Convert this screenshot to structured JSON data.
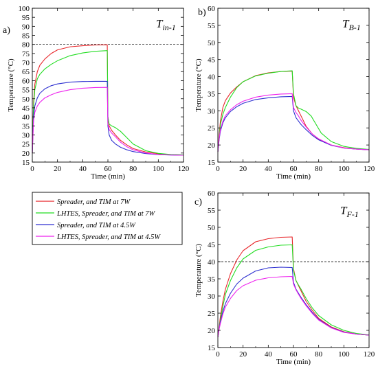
{
  "chart_data": [
    {
      "type": "line",
      "panel_letter": "a)",
      "title_main": "T",
      "title_sub": "in-1",
      "xlabel": "Time (min)",
      "ylabel": "Temperature (°C)",
      "xlim": [
        0,
        120
      ],
      "ylim": [
        15,
        100
      ],
      "xticks": [
        0,
        20,
        40,
        60,
        80,
        100,
        120
      ],
      "yticks": [
        15,
        20,
        25,
        30,
        35,
        40,
        45,
        50,
        55,
        60,
        65,
        70,
        75,
        80,
        85,
        90,
        95,
        100
      ],
      "reference_line": 80,
      "grid": false,
      "series": [
        {
          "name": "Spreader, and TIM at 7W",
          "color": "#e8262a",
          "x": [
            0,
            1,
            2,
            4,
            6,
            10,
            15,
            20,
            30,
            40,
            50,
            59.5,
            60,
            61,
            63,
            66,
            70,
            75,
            80,
            90,
            100,
            110,
            120
          ],
          "y": [
            20,
            48,
            58,
            65,
            68.5,
            72,
            75,
            77,
            78.7,
            79.3,
            79.7,
            79.8,
            40,
            35,
            32.5,
            30,
            27,
            24.5,
            22.5,
            20.6,
            19.6,
            19.1,
            18.9
          ]
        },
        {
          "name": "LHTES, Spreader, and TIM at 7W",
          "color": "#22dd22",
          "x": [
            0,
            1,
            2,
            4,
            6,
            10,
            15,
            20,
            30,
            40,
            50,
            59.5,
            60,
            61,
            63,
            66,
            70,
            75,
            80,
            90,
            100,
            110,
            120
          ],
          "y": [
            20,
            46,
            55,
            61,
            63.5,
            66.5,
            69,
            71,
            73.8,
            75.3,
            76.2,
            76.6,
            40,
            36,
            35,
            34,
            32,
            28.5,
            25,
            21.3,
            19.8,
            19.2,
            19.0
          ]
        },
        {
          "name": "Spreader, and TIM at 4.5W",
          "color": "#2d2fd0",
          "x": [
            0,
            1,
            2,
            4,
            6,
            10,
            15,
            20,
            30,
            40,
            50,
            59.5,
            60,
            61,
            63,
            66,
            70,
            75,
            80,
            90,
            100,
            110,
            120
          ],
          "y": [
            20,
            40,
            46,
            50.5,
            53,
            55.5,
            57.2,
            58.2,
            59.2,
            59.5,
            59.6,
            59.6,
            35,
            30,
            27,
            25,
            23.2,
            21.8,
            20.8,
            19.7,
            19.1,
            18.9,
            18.8
          ]
        },
        {
          "name": "LHTES, Spreader, and TIM at 4.5W",
          "color": "#ee22ee",
          "x": [
            0,
            1,
            2,
            4,
            6,
            10,
            15,
            20,
            30,
            40,
            50,
            59.5,
            60,
            61,
            63,
            66,
            70,
            75,
            80,
            90,
            100,
            110,
            120
          ],
          "y": [
            20,
            38,
            42.5,
            46,
            48,
            50.5,
            52.2,
            53.5,
            55,
            55.8,
            56.2,
            56.3,
            36,
            33,
            31,
            29,
            26,
            23.5,
            21.8,
            20.0,
            19.2,
            18.9,
            18.8
          ]
        }
      ]
    },
    {
      "type": "line",
      "panel_letter": "b)",
      "title_main": "T",
      "title_sub": "B-1",
      "xlabel": "Time (min)",
      "ylabel": "Temperature (°C)",
      "xlim": [
        0,
        120
      ],
      "ylim": [
        15,
        60
      ],
      "xticks": [
        0,
        20,
        40,
        60,
        80,
        100,
        120
      ],
      "yticks": [
        15,
        20,
        25,
        30,
        35,
        40,
        45,
        50,
        55,
        60
      ],
      "grid": false,
      "series": [
        {
          "name": "Spreader, and TIM at 7W",
          "color": "#e8262a",
          "x": [
            0,
            1,
            2,
            4,
            6,
            10,
            15,
            20,
            30,
            40,
            50,
            59,
            60,
            62,
            64,
            66,
            68,
            70,
            75,
            80,
            90,
            100,
            110,
            120
          ],
          "y": [
            18,
            23,
            27,
            31,
            33,
            35.2,
            37,
            38.5,
            40.3,
            41.1,
            41.5,
            41.6,
            34,
            31.5,
            30,
            28.5,
            27,
            25.5,
            23.2,
            21.7,
            20.0,
            19.2,
            18.8,
            18.6
          ]
        },
        {
          "name": "LHTES, Spreader, and TIM at 7W",
          "color": "#22dd22",
          "x": [
            0,
            1,
            2,
            4,
            6,
            10,
            15,
            20,
            30,
            40,
            50,
            59,
            60,
            62,
            64,
            66,
            70,
            74,
            78,
            82,
            90,
            100,
            110,
            120
          ],
          "y": [
            18,
            22,
            26,
            29,
            31,
            34,
            36.8,
            38.5,
            40.2,
            41.0,
            41.5,
            41.7,
            35,
            31.5,
            30.8,
            30.5,
            29.8,
            28.5,
            26,
            23.5,
            21,
            19.6,
            19.0,
            18.7
          ]
        },
        {
          "name": "Spreader, and TIM at 4.5W",
          "color": "#2d2fd0",
          "x": [
            0,
            1,
            2,
            4,
            6,
            10,
            15,
            20,
            30,
            40,
            50,
            59,
            60,
            62,
            64,
            66,
            70,
            75,
            80,
            90,
            100,
            110,
            120
          ],
          "y": [
            18,
            21.5,
            24,
            26.5,
            28,
            29.8,
            31.2,
            32.2,
            33.3,
            33.8,
            34.1,
            34.2,
            30,
            28,
            27,
            26,
            24.5,
            22.8,
            21.5,
            19.9,
            19.1,
            18.8,
            18.6
          ]
        },
        {
          "name": "LHTES, Spreader, and TIM at 4.5W",
          "color": "#ee22ee",
          "x": [
            0,
            1,
            2,
            4,
            6,
            10,
            15,
            20,
            30,
            40,
            50,
            59,
            60,
            62,
            64,
            66,
            70,
            75,
            80,
            90,
            100,
            110,
            120
          ],
          "y": [
            18,
            21.8,
            24.5,
            27,
            28.6,
            30.3,
            31.8,
            32.8,
            34.0,
            34.6,
            34.9,
            35.0,
            31,
            29.5,
            28.5,
            27.2,
            25.3,
            23.2,
            21.8,
            20.0,
            19.1,
            18.8,
            18.6
          ]
        }
      ]
    },
    {
      "type": "line",
      "panel_letter": "c)",
      "title_main": "T",
      "title_sub": "F-1",
      "xlabel": "Time (min)",
      "ylabel": "Temperature (°C)",
      "xlim": [
        0,
        120
      ],
      "ylim": [
        15,
        60
      ],
      "xticks": [
        0,
        20,
        40,
        60,
        80,
        100,
        120
      ],
      "yticks": [
        15,
        20,
        25,
        30,
        35,
        40,
        45,
        50,
        55,
        60
      ],
      "reference_line": 40,
      "grid": false,
      "series": [
        {
          "name": "Spreader, and TIM at 7W",
          "color": "#e8262a",
          "x": [
            0,
            1,
            2,
            4,
            6,
            10,
            15,
            20,
            30,
            40,
            50,
            59,
            60,
            62,
            64,
            66,
            70,
            75,
            80,
            90,
            100,
            110,
            120
          ],
          "y": [
            18,
            21,
            24,
            28.5,
            32,
            36.5,
            40.5,
            43.2,
            45.8,
            46.7,
            47.1,
            47.2,
            38,
            34.5,
            33,
            31.5,
            28.5,
            25.8,
            23.5,
            21.0,
            19.6,
            18.9,
            18.6
          ]
        },
        {
          "name": "LHTES, Spreader, and TIM at 7W",
          "color": "#22dd22",
          "x": [
            0,
            1,
            2,
            4,
            6,
            10,
            15,
            20,
            30,
            40,
            50,
            59,
            60,
            62,
            64,
            66,
            70,
            75,
            80,
            90,
            100,
            110,
            120
          ],
          "y": [
            18,
            20.5,
            23,
            27,
            30.5,
            34.5,
            38.2,
            40.8,
            43.3,
            44.3,
            44.8,
            44.9,
            37.5,
            34.5,
            33.2,
            32,
            29.3,
            26.5,
            24.3,
            21.6,
            20.0,
            19.1,
            18.7
          ]
        },
        {
          "name": "Spreader, and TIM at 4.5W",
          "color": "#2d2fd0",
          "x": [
            0,
            1,
            2,
            4,
            6,
            10,
            15,
            20,
            30,
            40,
            50,
            59,
            60,
            62,
            64,
            66,
            70,
            75,
            80,
            90,
            100,
            110,
            120
          ],
          "y": [
            18,
            20.5,
            22.5,
            25.5,
            27.8,
            30.8,
            33.5,
            35.2,
            37.3,
            38.2,
            38.4,
            38.3,
            34,
            32,
            30.8,
            29.6,
            27.5,
            25.2,
            23.2,
            20.8,
            19.5,
            18.9,
            18.6
          ]
        },
        {
          "name": "LHTES, Spreader, and TIM at 4.5W",
          "color": "#ee22ee",
          "x": [
            0,
            1,
            2,
            4,
            6,
            10,
            15,
            20,
            30,
            40,
            50,
            59,
            60,
            62,
            64,
            66,
            70,
            75,
            80,
            90,
            100,
            110,
            120
          ],
          "y": [
            18,
            20.3,
            22,
            24.8,
            26.8,
            29.3,
            31.6,
            33.0,
            34.6,
            35.3,
            35.6,
            35.7,
            33.5,
            31.8,
            30.5,
            29.3,
            27.2,
            24.9,
            23.0,
            20.7,
            19.4,
            18.9,
            18.6
          ]
        }
      ]
    }
  ],
  "legend": {
    "placement": "middle-left",
    "entries": [
      {
        "label": "Spreader, and TIM at 7W",
        "color": "#e8262a"
      },
      {
        "label": "LHTES, Spreader, and TIM at 7W",
        "color": "#22dd22"
      },
      {
        "label": "Spreader, and TIM at 4.5W",
        "color": "#2d2fd0"
      },
      {
        "label": "LHTES, Spreader, and TIM at 4.5W",
        "color": "#ee22ee"
      }
    ]
  }
}
